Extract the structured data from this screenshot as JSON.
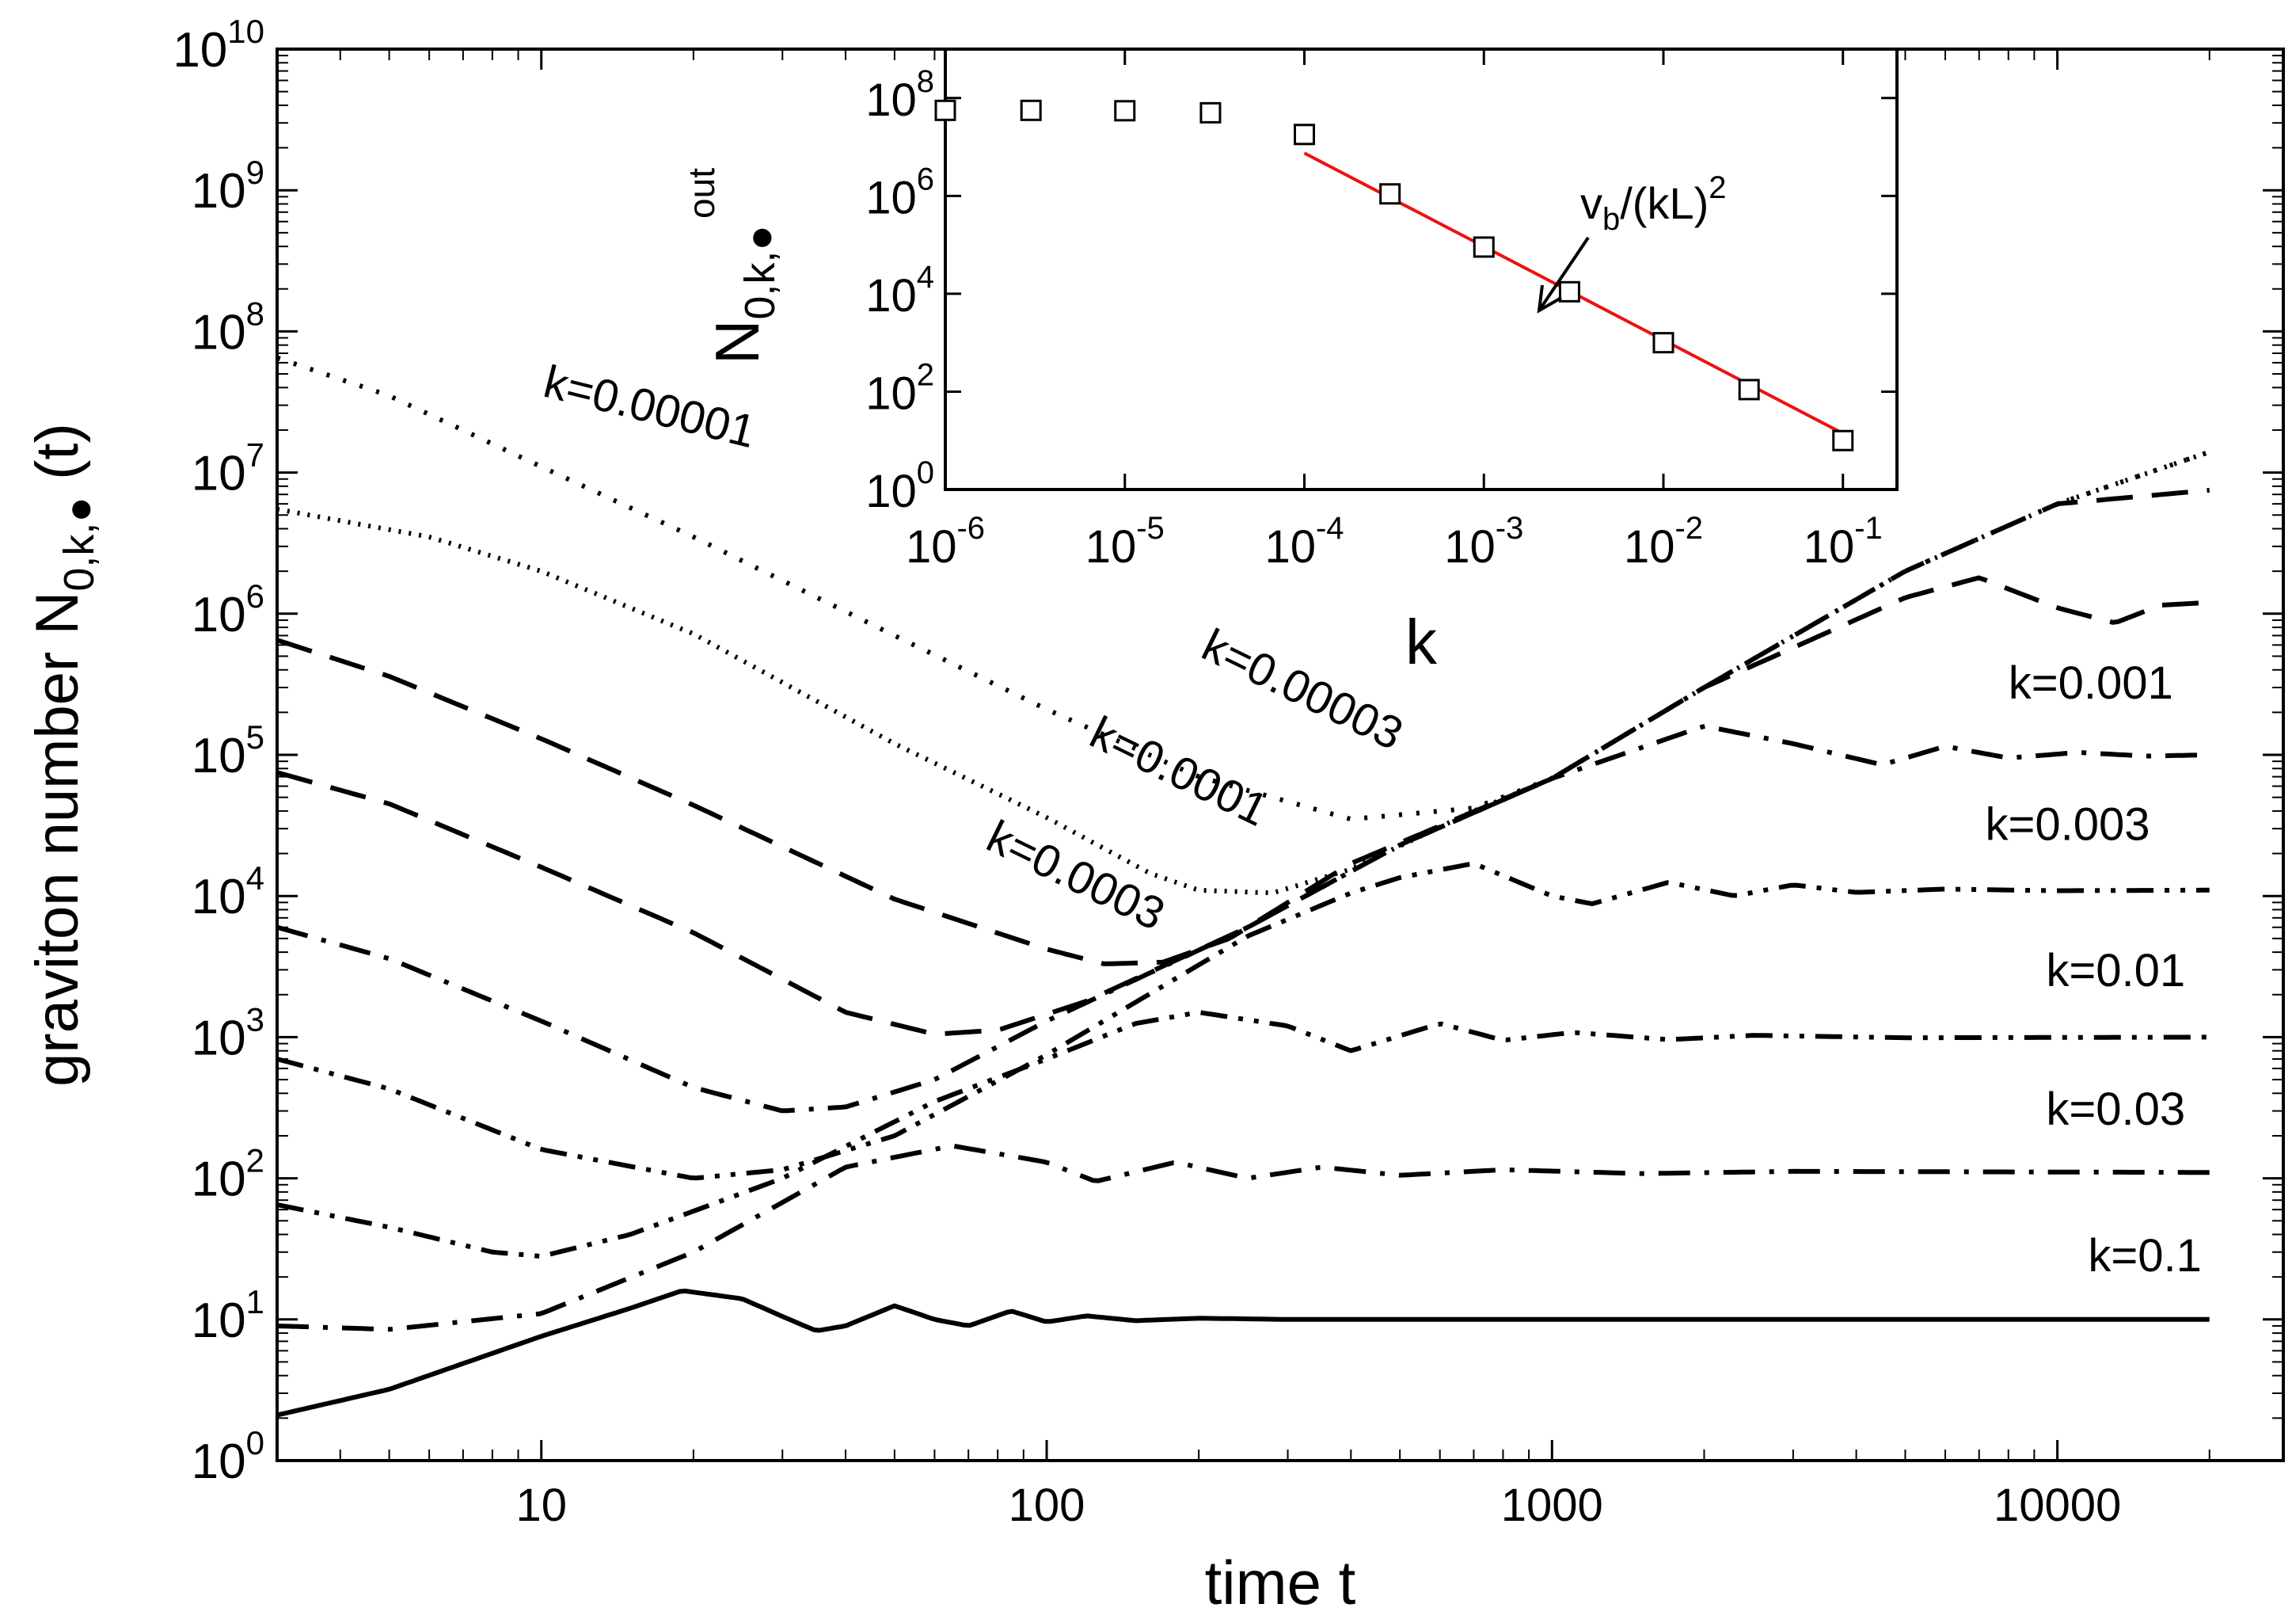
{
  "chart_data": [
    {
      "type": "line",
      "xlabel": "time t",
      "ylabel": "graviton number N",
      "ylabel_sub": "0,k,●",
      "ylabel_suffix": " (t)",
      "x_scale": "log",
      "y_scale": "log",
      "xlim": [
        3,
        28000
      ],
      "ylim": [
        1,
        10000000000
      ],
      "x_ticks": [
        10,
        100,
        1000,
        10000
      ],
      "x_tick_labels": [
        "10",
        "100",
        "1000",
        "10000"
      ],
      "y_tick_exponents": [
        0,
        1,
        2,
        3,
        4,
        5,
        6,
        7,
        8,
        9,
        10
      ],
      "y_tick_base": "10",
      "grid": false,
      "common_growth": {
        "description": "",
        "points": [
          [
            20,
            16
          ],
          [
            100,
            180
          ],
          [
            1000,
            65000
          ],
          [
            20000,
            14000000
          ]
        ]
      },
      "series": [
        {
          "name": "k=0.00001",
          "style": "dotted",
          "saturation": 8000000,
          "points": [
            [
              3,
              65000000
            ],
            [
              5,
              35000000
            ],
            [
              10,
              11000000
            ],
            [
              20,
              3500000
            ],
            [
              50,
              700000
            ],
            [
              100,
              210000
            ],
            [
              200,
              70000
            ],
            [
              400,
              35000
            ],
            [
              700,
              42000
            ],
            [
              1000,
              68000
            ],
            [
              2000,
              300000
            ],
            [
              5000,
              2000000
            ],
            [
              10000,
              6000000
            ],
            [
              20000,
              14000000
            ]
          ]
        },
        {
          "name": "k=0.00003",
          "style": "thin-dotted",
          "saturation": 8000000,
          "points": [
            [
              3,
              5500000
            ],
            [
              6,
              3500000
            ],
            [
              10,
              2000000
            ],
            [
              20,
              720000
            ],
            [
              50,
              120000
            ],
            [
              100,
              36000
            ],
            [
              160,
              14500
            ],
            [
              200,
              11000
            ],
            [
              280,
              10500
            ],
            [
              400,
              15500
            ],
            [
              700,
              40000
            ],
            [
              1000,
              68000
            ],
            [
              2000,
              300000
            ],
            [
              5000,
              2000000
            ],
            [
              10000,
              6000000
            ],
            [
              20000,
              14000000
            ]
          ]
        },
        {
          "name": "k=0.0001",
          "style": "long-dash",
          "saturation": 8000000,
          "points": [
            [
              3,
              650000
            ],
            [
              5,
              360000
            ],
            [
              10,
              130000
            ],
            [
              20,
              44000
            ],
            [
              50,
              9500
            ],
            [
              100,
              4200
            ],
            [
              130,
              3300
            ],
            [
              170,
              3400
            ],
            [
              230,
              5000
            ],
            [
              400,
              17000
            ],
            [
              1000,
              68000
            ],
            [
              2000,
              300000
            ],
            [
              5000,
              2000000
            ],
            [
              10000,
              6000000
            ],
            [
              20000,
              7500000
            ]
          ]
        },
        {
          "name": "k=0.0003",
          "style": "long-dash",
          "saturation": 1100000,
          "points": [
            [
              3,
              75000
            ],
            [
              5,
              45000
            ],
            [
              10,
              16000
            ],
            [
              20,
              5500
            ],
            [
              40,
              1500
            ],
            [
              60,
              1050
            ],
            [
              80,
              1120
            ],
            [
              120,
              1800
            ],
            [
              250,
              6000
            ],
            [
              500,
              23000
            ],
            [
              1000,
              68000
            ],
            [
              2000,
              300000
            ],
            [
              5000,
              1300000
            ],
            [
              7000,
              1800000
            ],
            [
              10000,
              1100000
            ],
            [
              13000,
              860000
            ],
            [
              16000,
              1150000
            ],
            [
              20000,
              1200000
            ]
          ]
        },
        {
          "name": "k=0.001",
          "style": "dash-dot",
          "saturation": 100000,
          "points": [
            [
              3,
              6000
            ],
            [
              5,
              3600
            ],
            [
              10,
              1300
            ],
            [
              20,
              440
            ],
            [
              30,
              300
            ],
            [
              40,
              320
            ],
            [
              60,
              500
            ],
            [
              100,
              1300
            ],
            [
              250,
              6000
            ],
            [
              500,
              23000
            ],
            [
              1000,
              68000
            ],
            [
              2000,
              160000
            ],
            [
              3000,
              120000
            ],
            [
              4500,
              85000
            ],
            [
              6000,
              115000
            ],
            [
              8000,
              95000
            ],
            [
              11000,
              104000
            ],
            [
              15000,
              98000
            ],
            [
              20000,
              100000
            ]
          ]
        },
        {
          "name": "k=0.003",
          "style": "dash-dot-dot",
          "saturation": 11000,
          "points": [
            [
              3,
              700
            ],
            [
              5,
              430
            ],
            [
              10,
              160
            ],
            [
              20,
              100
            ],
            [
              30,
              115
            ],
            [
              50,
              200
            ],
            [
              100,
              750
            ],
            [
              250,
              5200
            ],
            [
              400,
              10500
            ],
            [
              500,
              13500
            ],
            [
              700,
              17000
            ],
            [
              1000,
              10000
            ],
            [
              1200,
              8800
            ],
            [
              1700,
              12500
            ],
            [
              2300,
              10000
            ],
            [
              3000,
              12000
            ],
            [
              4000,
              10600
            ],
            [
              6000,
              11200
            ],
            [
              10000,
              10900
            ],
            [
              20000,
              11000
            ]
          ]
        },
        {
          "name": "k=0.01",
          "style": "dash-dot-dot",
          "saturation": 1000,
          "points": [
            [
              3,
              65
            ],
            [
              5,
              45
            ],
            [
              8,
              30
            ],
            [
              10,
              28
            ],
            [
              15,
              40
            ],
            [
              30,
              100
            ],
            [
              60,
              350
            ],
            [
              100,
              700
            ],
            [
              150,
              1250
            ],
            [
              200,
              1500
            ],
            [
              300,
              1200
            ],
            [
              400,
              800
            ],
            [
              600,
              1250
            ],
            [
              800,
              950
            ],
            [
              1100,
              1080
            ],
            [
              1700,
              960
            ],
            [
              2500,
              1030
            ],
            [
              5000,
              990
            ],
            [
              20000,
              1000
            ]
          ]
        },
        {
          "name": "k=0.03",
          "style": "dash-dot",
          "saturation": 110,
          "points": [
            [
              3,
              9
            ],
            [
              5,
              8.5
            ],
            [
              10,
              11
            ],
            [
              20,
              30
            ],
            [
              40,
              120
            ],
            [
              65,
              170
            ],
            [
              100,
              130
            ],
            [
              125,
              95
            ],
            [
              180,
              130
            ],
            [
              250,
              100
            ],
            [
              350,
              120
            ],
            [
              500,
              105
            ],
            [
              800,
              115
            ],
            [
              1500,
              108
            ],
            [
              3000,
              112
            ],
            [
              20000,
              110
            ]
          ]
        },
        {
          "name": "k=0.1",
          "style": "solid",
          "saturation": 10,
          "points": [
            [
              3,
              2.1
            ],
            [
              5,
              3.2
            ],
            [
              10,
              7.6
            ],
            [
              15,
              12
            ],
            [
              19,
              16
            ],
            [
              25,
              14
            ],
            [
              30,
              10.5
            ],
            [
              35,
              8.3
            ],
            [
              40,
              9
            ],
            [
              50,
              12.5
            ],
            [
              60,
              10
            ],
            [
              70,
              9
            ],
            [
              85,
              11.5
            ],
            [
              100,
              9.6
            ],
            [
              120,
              10.6
            ],
            [
              150,
              9.8
            ],
            [
              200,
              10.2
            ],
            [
              300,
              10
            ],
            [
              20000,
              10
            ]
          ]
        }
      ],
      "annotations": [
        {
          "text": "k=0.00001",
          "x": 10,
          "y": 35000000,
          "rotate": 14
        },
        {
          "text": "k=0.00003",
          "x": 200,
          "y": 500000,
          "rotate": 26
        },
        {
          "text": "k=0.0001",
          "x": 120,
          "y": 120000,
          "rotate": 26
        },
        {
          "text": "k=0.0003",
          "x": 75,
          "y": 22000,
          "rotate": 26
        },
        {
          "text": "k=0.001",
          "x": 8000,
          "y": 250000,
          "rotate": 0
        },
        {
          "text": "k=0.003",
          "x": 7200,
          "y": 25000,
          "rotate": 0
        },
        {
          "text": "k=0.01",
          "x": 9500,
          "y": 2300,
          "rotate": 0
        },
        {
          "text": "k=0.03",
          "x": 9500,
          "y": 240,
          "rotate": 0
        },
        {
          "text": "k=0.1",
          "x": 11500,
          "y": 22,
          "rotate": 0
        }
      ]
    },
    {
      "type": "scatter",
      "xlabel": "k",
      "ylabel": "N",
      "ylabel_sub": "0,k,●",
      "ylabel_sup": "out",
      "x_scale": "log",
      "y_scale": "log",
      "xlim": [
        1e-06,
        0.2
      ],
      "ylim": [
        1,
        1000000000
      ],
      "x_tick_exponents": [
        -6,
        -5,
        -4,
        -3,
        -2,
        -1
      ],
      "y_tick_exponents": [
        0,
        2,
        4,
        6,
        8
      ],
      "y_tick_base": "10",
      "grid": false,
      "series": [
        {
          "name": "",
          "marker": "square",
          "points": [
            [
              1e-06,
              56000000
            ],
            [
              3e-06,
              56000000
            ],
            [
              1e-05,
              55000000
            ],
            [
              3e-05,
              50000000
            ],
            [
              0.0001,
              18000000
            ],
            [
              0.0003,
              1100000
            ],
            [
              0.001,
              90000
            ],
            [
              0.003,
              11000
            ],
            [
              0.01,
              1000
            ],
            [
              0.03,
              110
            ],
            [
              0.1,
              10
            ]
          ]
        },
        {
          "name": "",
          "style": "line",
          "color": "#ee1111",
          "points": [
            [
              0.0001,
              7500000
            ],
            [
              0.1,
              14
            ]
          ]
        }
      ],
      "fit_label": {
        "main": "v",
        "sub": "b",
        "mid": "/(kL)",
        "sup": "2"
      }
    }
  ]
}
